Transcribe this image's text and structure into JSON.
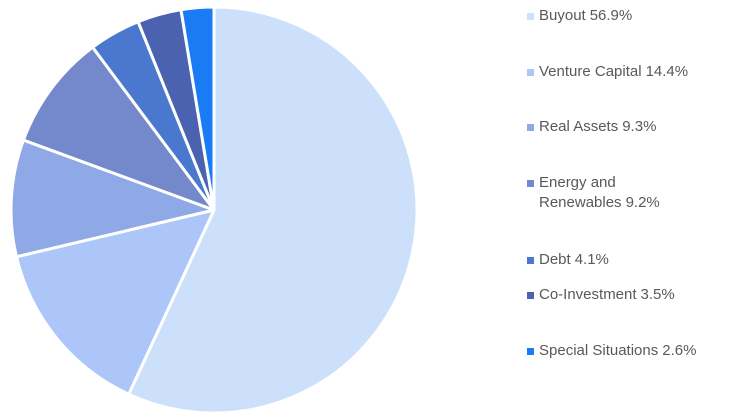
{
  "chart_data": {
    "type": "pie",
    "categories": [
      "Buyout",
      "Venture Capital",
      "Real Assets",
      "Energy and Renewables",
      "Debt",
      "Co-Investment",
      "Special Situations"
    ],
    "values": [
      56.9,
      14.4,
      9.3,
      9.2,
      4.1,
      3.5,
      2.6
    ],
    "value_labels": [
      "56.9%",
      "14.4%",
      "9.3%",
      "9.2%",
      "4.1%",
      "3.5%",
      "2.6%"
    ],
    "colors": [
      "#cce0fb",
      "#adc6f9",
      "#8fa8e6",
      "#7389cc",
      "#4a78cf",
      "#4a62b0",
      "#1a7cf5"
    ],
    "legend": "right"
  }
}
